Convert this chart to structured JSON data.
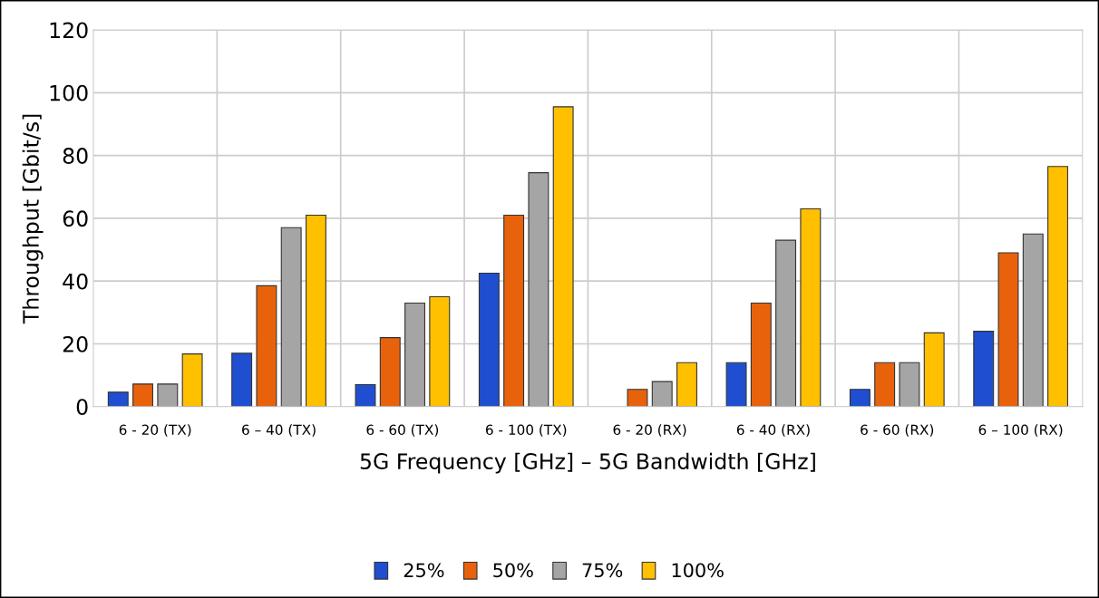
{
  "chart_data": {
    "type": "bar",
    "xlabel": "5G Frequency [GHz] – 5G Bandwidth [GHz]",
    "ylabel": "Throughput [Gbit/s]",
    "categories": [
      "6 - 20 (TX)",
      "6 – 40 (TX)",
      "6 - 60 (TX)",
      "6 - 100 (TX)",
      "6 - 20 (RX)",
      "6 - 40 (RX)",
      "6 - 60 (RX)",
      "6 – 100 (RX)"
    ],
    "series": [
      {
        "name": "25%",
        "color": "#1f4fd0",
        "values": [
          4.6,
          17,
          7,
          42.5,
          null,
          14,
          5.5,
          24
        ]
      },
      {
        "name": "50%",
        "color": "#e8620c",
        "values": [
          7.2,
          38.5,
          22,
          61,
          5.5,
          33,
          14,
          49
        ]
      },
      {
        "name": "75%",
        "color": "#a5a5a5",
        "values": [
          7.2,
          57,
          33,
          74.5,
          8,
          53,
          14,
          55
        ]
      },
      {
        "name": "100%",
        "color": "#ffc000",
        "values": [
          16.8,
          61,
          35,
          95.5,
          14,
          63,
          23.5,
          76.5
        ]
      }
    ],
    "ylim": [
      0,
      120
    ],
    "yticks": [
      0,
      20,
      40,
      60,
      80,
      100,
      120
    ],
    "grid": true,
    "legend": "bottom"
  }
}
